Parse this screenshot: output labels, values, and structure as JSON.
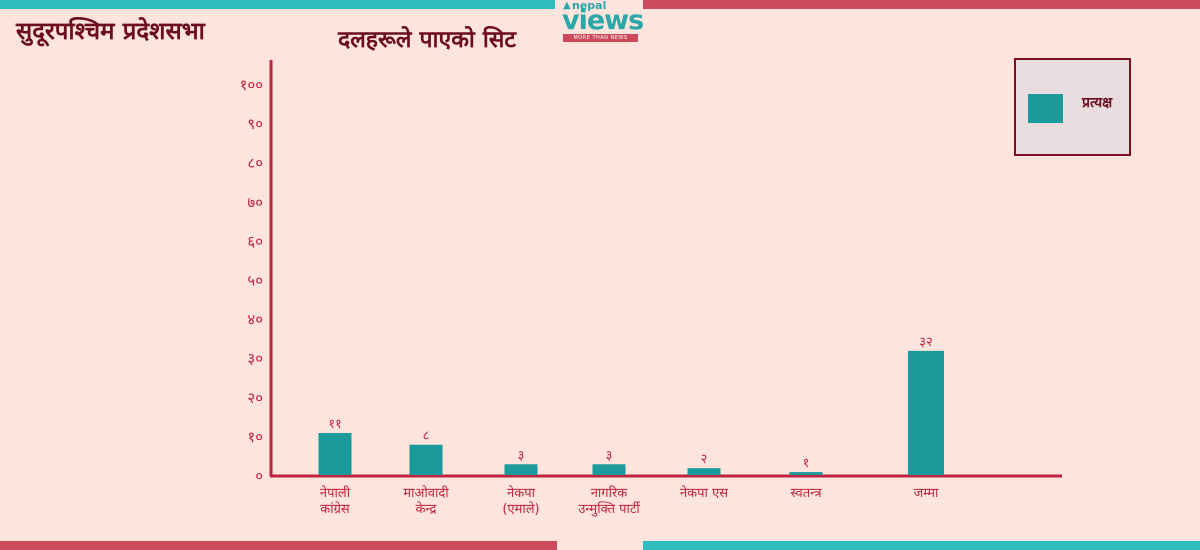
{
  "header": {
    "assembly_title": "सुदूरपश्चिम प्रदेशसभा"
  },
  "logo": {
    "small_text": "nepal",
    "big_text": "views",
    "tagline": "MORE THAN NEWS",
    "colors": {
      "primary": "#2aa8a8",
      "tag_bg": "#cc4a5a"
    }
  },
  "colors": {
    "background": "#fde4dc",
    "bar": "#1a9a9a",
    "axis": "#c0233f",
    "text": "#6b0d1e"
  },
  "chart_data": {
    "type": "bar",
    "title": "दलहरूले पाएको सिट",
    "xlabel": "",
    "ylabel": "",
    "ylim": [
      0,
      100
    ],
    "grid": false,
    "legend_position": "top-right",
    "yticks": [
      {
        "value": 0,
        "label": "०"
      },
      {
        "value": 10,
        "label": "१०"
      },
      {
        "value": 20,
        "label": "२०"
      },
      {
        "value": 30,
        "label": "३०"
      },
      {
        "value": 40,
        "label": "४०"
      },
      {
        "value": 50,
        "label": "५०"
      },
      {
        "value": 60,
        "label": "६०"
      },
      {
        "value": 70,
        "label": "७०"
      },
      {
        "value": 80,
        "label": "८०"
      },
      {
        "value": 90,
        "label": "९०"
      },
      {
        "value": 100,
        "label": "१००"
      }
    ],
    "categories": [
      [
        "नेपाली",
        "कांग्रेस"
      ],
      [
        "माओवादी",
        "केन्द्र"
      ],
      [
        "नेकपा",
        "(एमाले)"
      ],
      [
        "नागरिक",
        "उन्मुक्ति पार्टी"
      ],
      [
        "नेकपा एस"
      ],
      [
        "स्वतन्त्र"
      ],
      [
        "जम्मा"
      ]
    ],
    "series": [
      {
        "name": "प्रत्यक्ष",
        "values": [
          11,
          8,
          3,
          3,
          2,
          1,
          32
        ],
        "value_labels": [
          "११",
          "८",
          "३",
          "३",
          "२",
          "१",
          "३२"
        ]
      }
    ]
  }
}
